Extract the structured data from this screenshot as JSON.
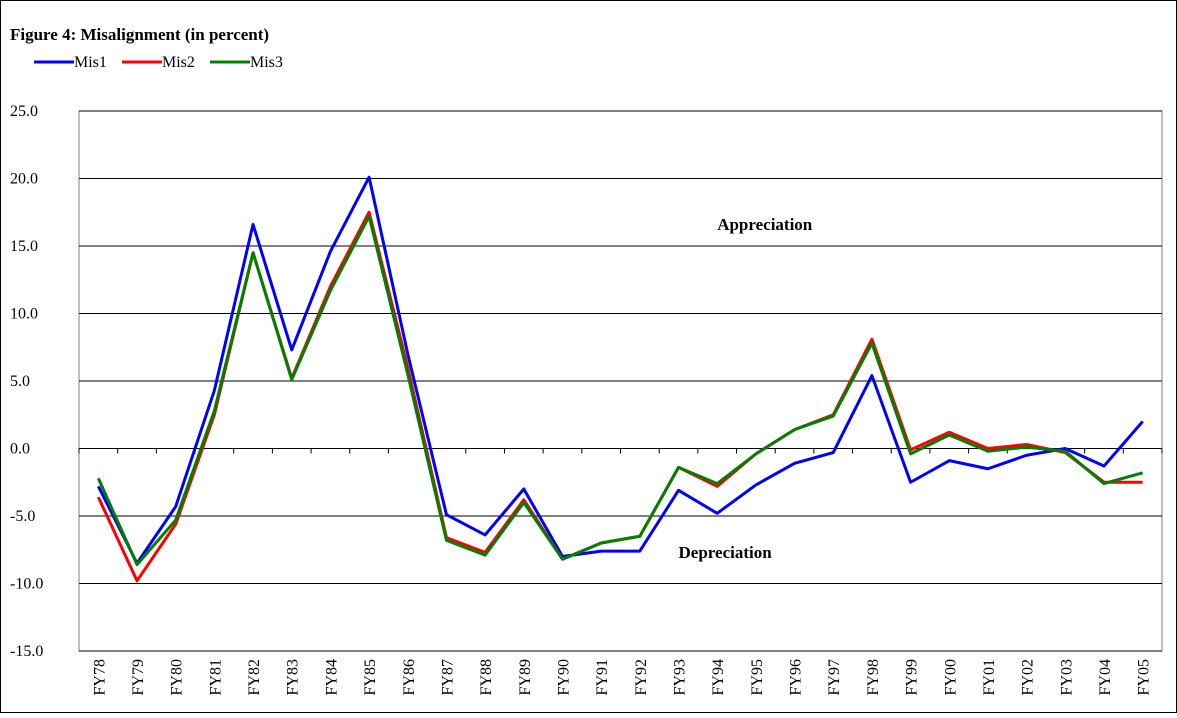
{
  "chart_data": {
    "type": "line",
    "title": "Figure 4: Misalignment (in percent)",
    "categories": [
      "FY78",
      "FY79",
      "FY80",
      "FY81",
      "FY82",
      "FY83",
      "FY84",
      "FY85",
      "FY86",
      "FY87",
      "FY88",
      "FY89",
      "FY90",
      "FY91",
      "FY92",
      "FY93",
      "FY94",
      "FY95",
      "FY96",
      "FY97",
      "FY98",
      "FY99",
      "FY00",
      "FY01",
      "FY02",
      "FY03",
      "FY04",
      "FY05"
    ],
    "series": [
      {
        "name": "Mis1",
        "color": "#0000ff",
        "values": [
          -2.8,
          -8.5,
          -4.3,
          4.3,
          16.6,
          7.3,
          14.6,
          20.1,
          7.0,
          -4.9,
          -6.4,
          -3.0,
          -8.0,
          -7.6,
          -7.6,
          -3.1,
          -4.8,
          -2.7,
          -1.1,
          -0.3,
          5.4,
          -2.5,
          -0.9,
          -1.5,
          -0.5,
          0.0,
          -1.3,
          2.0
        ]
      },
      {
        "name": "Mis2",
        "color": "#ff0000",
        "values": [
          -3.6,
          -9.8,
          -5.6,
          2.5,
          14.5,
          5.2,
          12.0,
          17.5,
          6.0,
          -6.6,
          -7.7,
          -3.8,
          -8.2,
          -7.0,
          -6.5,
          -1.4,
          -2.8,
          -0.4,
          1.4,
          2.5,
          8.1,
          -0.1,
          1.2,
          0.0,
          0.3,
          -0.3,
          -2.5,
          -2.5
        ]
      },
      {
        "name": "Mis3",
        "color": "#008000",
        "values": [
          -2.2,
          -8.6,
          -5.3,
          2.8,
          14.5,
          5.1,
          11.7,
          17.2,
          5.5,
          -6.8,
          -7.9,
          -4.0,
          -8.2,
          -7.0,
          -6.5,
          -1.4,
          -2.6,
          -0.4,
          1.4,
          2.4,
          7.8,
          -0.4,
          1.0,
          -0.2,
          0.1,
          -0.2,
          -2.6,
          -1.8
        ]
      }
    ],
    "ylim": [
      -15,
      25
    ],
    "yticks": [
      {
        "value": -15,
        "label": "-15.0"
      },
      {
        "value": -10,
        "label": "-10.0"
      },
      {
        "value": -5,
        "label": "-5.0"
      },
      {
        "value": 0,
        "label": "0.0"
      },
      {
        "value": 5,
        "label": "5.0"
      },
      {
        "value": 10,
        "label": "10.0"
      },
      {
        "value": 15,
        "label": "15.0"
      },
      {
        "value": 20,
        "label": "20.0"
      },
      {
        "value": 25,
        "label": "25.0"
      }
    ],
    "grid": true,
    "annotations": [
      {
        "text": "Appreciation",
        "x": "FY94",
        "y": 16.2
      },
      {
        "text": "Depreciation",
        "x": "FY93",
        "y": -8.1
      }
    ]
  }
}
